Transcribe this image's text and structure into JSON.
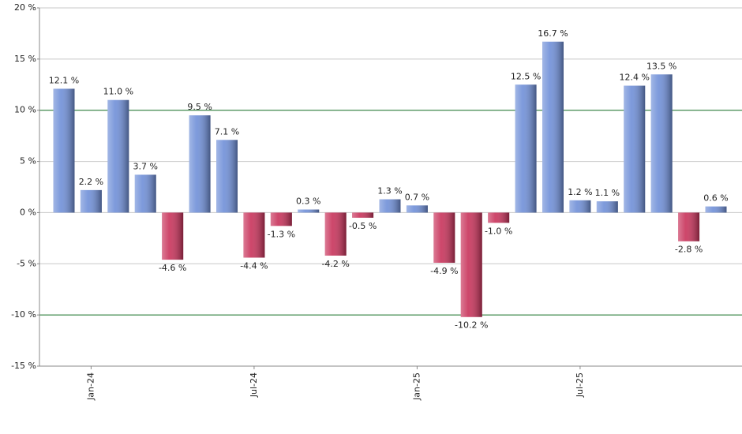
{
  "chart_data": {
    "type": "bar",
    "categories": [
      null,
      "Jan-24",
      null,
      null,
      null,
      null,
      null,
      "Jul-24",
      null,
      null,
      null,
      null,
      null,
      "Jan-25",
      null,
      null,
      null,
      null,
      null,
      "Jul-25",
      null,
      null,
      null,
      null,
      null
    ],
    "values": [
      12.1,
      2.2,
      11.0,
      3.7,
      -4.6,
      9.5,
      7.1,
      -4.4,
      -1.3,
      0.3,
      -4.2,
      -0.5,
      1.3,
      0.7,
      -4.9,
      -10.2,
      -1.0,
      12.5,
      16.7,
      1.2,
      1.1,
      12.4,
      13.5,
      -2.8,
      0.6
    ],
    "value_labels": [
      "12.1 %",
      "2.2 %",
      "11.0 %",
      "3.7 %",
      "-4.6 %",
      "9.5 %",
      "7.1 %",
      "-4.4 %",
      "-1.3 %",
      "0.3 %",
      "-4.2 %",
      "-0.5 %",
      "1.3 %",
      "0.7 %",
      "-4.9 %",
      "-10.2 %",
      "-1.0 %",
      "12.5 %",
      "16.7 %",
      "1.2 %",
      "1.1 %",
      "12.4 %",
      "13.5 %",
      "-2.8 %",
      "0.6 %"
    ],
    "positive_color": "#6f8fd8",
    "negative_color": "#c8325a",
    "ylim": [
      -15,
      20
    ],
    "yticks": [
      {
        "value": -15,
        "label": "-15 %"
      },
      {
        "value": -10,
        "label": "-10 %"
      },
      {
        "value": -5,
        "label": "-5 %"
      },
      {
        "value": 0,
        "label": "0 %"
      },
      {
        "value": 5,
        "label": "5 %"
      },
      {
        "value": 10,
        "label": "10 %"
      },
      {
        "value": 15,
        "label": "15 %"
      },
      {
        "value": 20,
        "label": "20 %"
      }
    ],
    "grid": true,
    "reference_lines": {
      "values": [
        10,
        -10
      ],
      "color": "#1e7a2e"
    }
  }
}
